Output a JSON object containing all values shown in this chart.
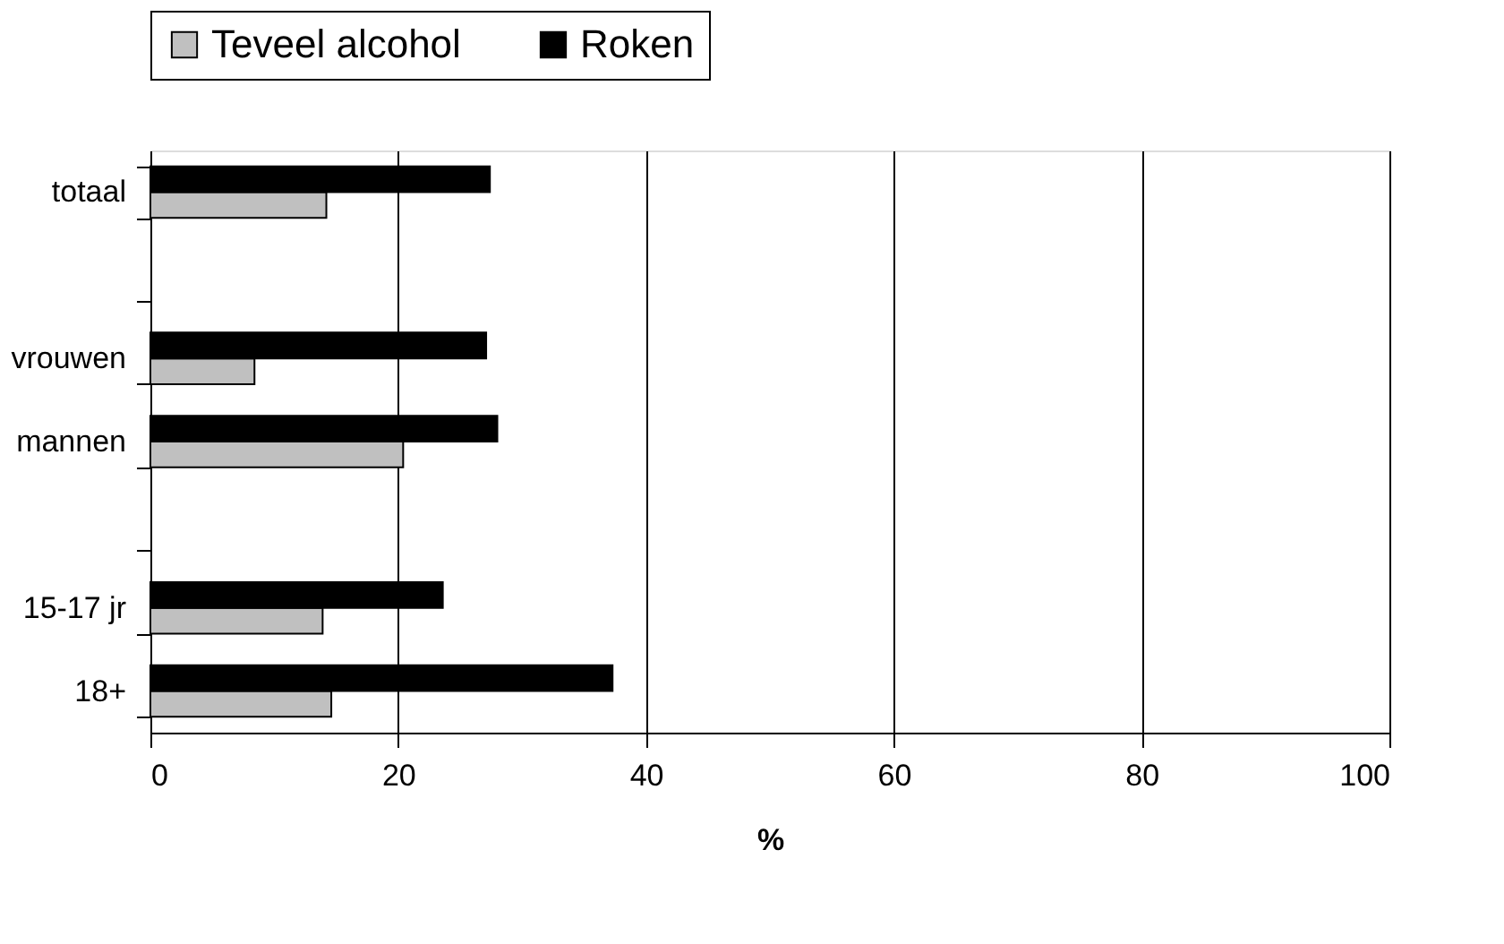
{
  "chart_data": {
    "type": "bar",
    "orientation": "horizontal",
    "xlabel": "%",
    "categories": [
      "totaal",
      null,
      "vrouwen",
      "mannen",
      null,
      "15-17 jr",
      "18+"
    ],
    "series": [
      {
        "name": "Teveel alcohol",
        "color": "#c0c0c0",
        "values": [
          14.2,
          null,
          8.4,
          20.4,
          null,
          13.9,
          14.6
        ]
      },
      {
        "name": "Roken",
        "color": "#000000",
        "values": [
          27.4,
          null,
          27.1,
          28.0,
          null,
          23.6,
          37.3
        ]
      }
    ],
    "xlim": [
      0,
      100
    ],
    "xticks": [
      0,
      20,
      40,
      60,
      80,
      100
    ],
    "grid": "x",
    "legend": "top"
  }
}
